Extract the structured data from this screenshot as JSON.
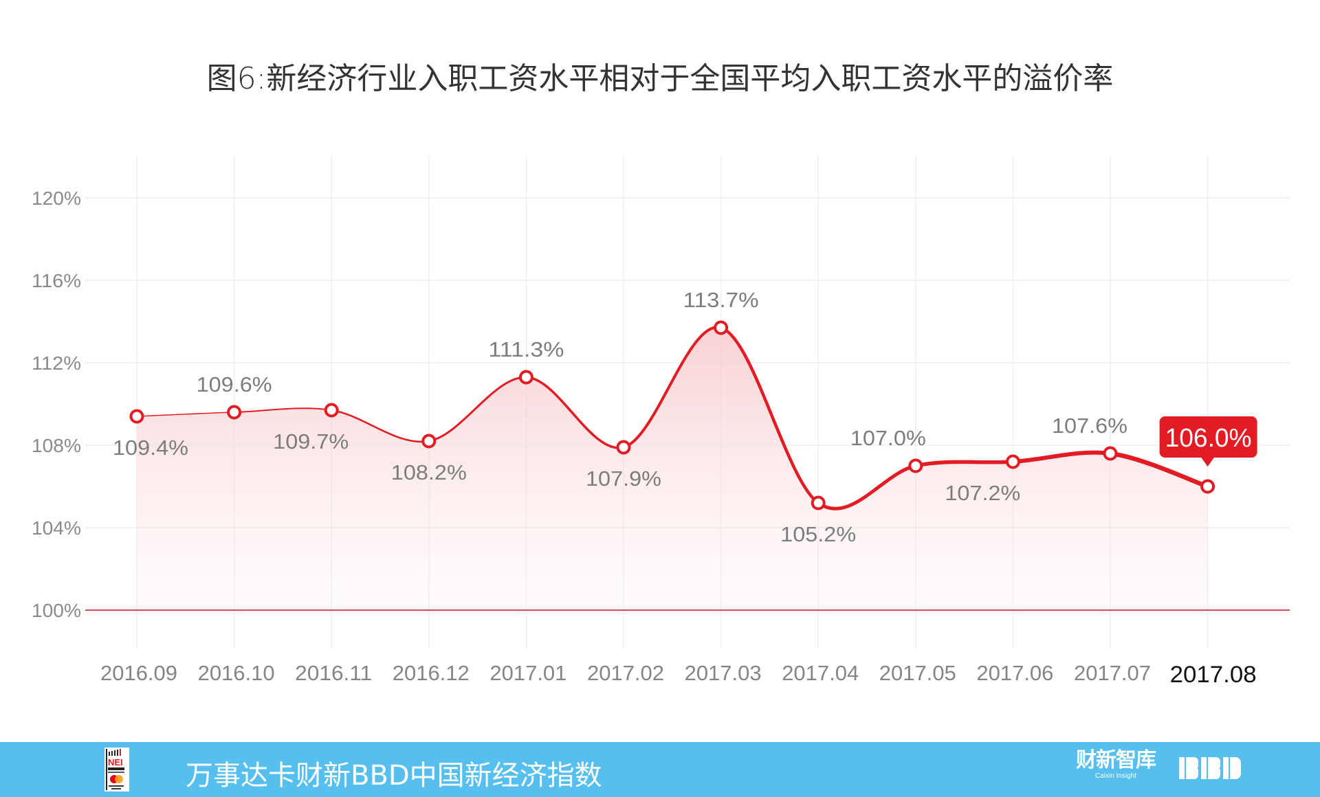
{
  "title": "图6:新经济行业入职工资水平相对于全国平均入职工资水平的溢价率",
  "footer": {
    "title": "万事达卡财新BBD中国新经济指数",
    "logo_left": "NEI",
    "logo_caixin": "财新智库",
    "logo_caixin_sub": "Caixin Insight",
    "logo_bbd": "BBD",
    "background_color": "#56bfee"
  },
  "colors": {
    "line": "#e31b23",
    "baseline": "#c0141c",
    "grid": "#efefef",
    "fill_top": "#f9d3d5",
    "tooltip_bg": "#e31b23"
  },
  "chart_data": {
    "type": "area",
    "title": "图6:新经济行业入职工资水平相对于全国平均入职工资水平的溢价率",
    "xlabel": "",
    "ylabel": "",
    "categories": [
      "2016.09",
      "2016.10",
      "2016.11",
      "2016.12",
      "2017.01",
      "2017.02",
      "2017.03",
      "2017.04",
      "2017.05",
      "2017.06",
      "2017.07",
      "2017.08"
    ],
    "values": [
      109.4,
      109.6,
      109.7,
      108.2,
      111.3,
      107.9,
      113.7,
      105.2,
      107.0,
      107.2,
      107.6,
      106.0
    ],
    "labels": [
      "109.4%",
      "109.6%",
      "109.7%",
      "108.2%",
      "111.3%",
      "107.9%",
      "113.7%",
      "105.2%",
      "107.0%",
      "107.2%",
      "107.6%",
      "106.0%"
    ],
    "label_position": [
      "below",
      "above",
      "below",
      "below",
      "above",
      "below",
      "above",
      "below",
      "above",
      "below",
      "above",
      "tooltip"
    ],
    "yticks": [
      "100%",
      "104%",
      "108%",
      "112%",
      "116%",
      "120%"
    ],
    "ytick_values": [
      100,
      104,
      108,
      112,
      116,
      120
    ],
    "ylim": [
      100,
      120
    ],
    "grid": true,
    "legend": null,
    "highlight": {
      "category": "2017.08",
      "label": "106.0%"
    }
  }
}
